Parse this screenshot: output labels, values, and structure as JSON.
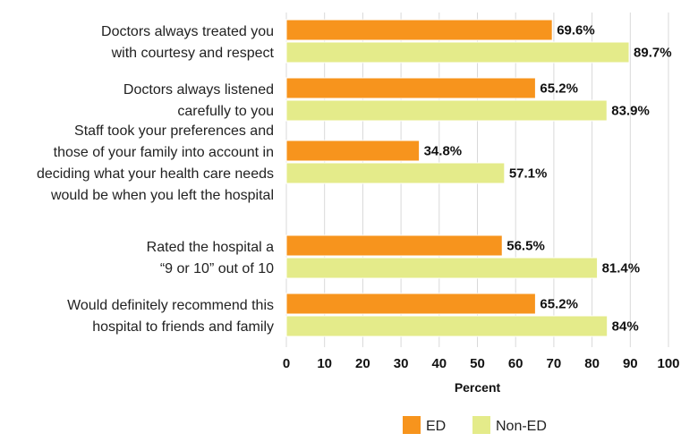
{
  "colors": {
    "ed": "#F7941D",
    "non_ed": "#E4EB8A",
    "bar_stroke": "#ffffff",
    "grid": "#d9d9d9"
  },
  "chart_data": {
    "type": "bar",
    "orientation": "horizontal",
    "categories": [
      [
        "Doctors always treated you",
        "with courtesy and respect"
      ],
      [
        "Doctors always listened",
        "carefully to you"
      ],
      [
        "Staff took your preferences and",
        "those of your family into account in",
        "deciding what your health care needs",
        "would be when you left the hospital"
      ],
      [
        "Rated the hospital a",
        "“9 or 10” out of 10"
      ],
      [
        "Would definitely recommend this",
        "hospital to friends and family"
      ]
    ],
    "series": [
      {
        "name": "ED",
        "values": [
          69.6,
          65.2,
          34.8,
          56.5,
          65.2
        ],
        "labels": [
          "69.6%",
          "65.2%",
          "34.8%",
          "56.5%",
          "65.2%"
        ]
      },
      {
        "name": "Non-ED",
        "values": [
          89.7,
          83.9,
          57.1,
          81.4,
          84
        ],
        "labels": [
          "89.7%",
          "83.9%",
          "57.1%",
          "81.4%",
          "84%"
        ]
      }
    ],
    "xlabel": "Percent",
    "xlim": [
      0,
      100
    ],
    "xticks": [
      "0",
      "10",
      "20",
      "30",
      "40",
      "50",
      "60",
      "70",
      "80",
      "90",
      "100"
    ],
    "grid": true,
    "legend_position": "bottom-center"
  }
}
